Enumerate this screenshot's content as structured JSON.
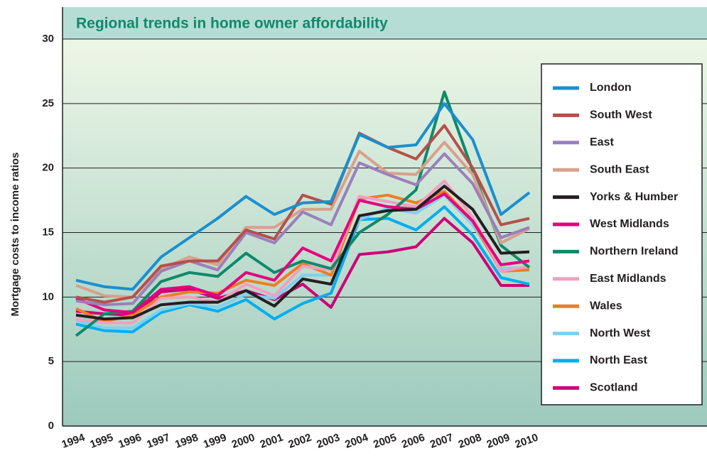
{
  "chart_data": {
    "type": "line",
    "title": "Regional trends in home owner affordability",
    "y_label": "Mortgage costs to income ratios",
    "categories": [
      "1994",
      "1995",
      "1996",
      "1997",
      "1998",
      "1999",
      "2000",
      "2001",
      "2002",
      "2003",
      "2004",
      "2005",
      "2006",
      "2007",
      "2008",
      "2009",
      "2010"
    ],
    "ylim": [
      0,
      30
    ],
    "yticks": [
      0,
      5,
      10,
      15,
      20,
      25,
      30
    ],
    "grid": true,
    "legend": "right",
    "series": [
      {
        "name": "London",
        "color": "#1a8fcf",
        "values": [
          11.3,
          10.8,
          10.6,
          13.1,
          14.6,
          16.1,
          17.8,
          16.4,
          17.3,
          17.4,
          22.6,
          21.6,
          21.8,
          25.0,
          22.2,
          16.4,
          18.1
        ]
      },
      {
        "name": "South West",
        "color": "#b5504a",
        "values": [
          10.0,
          9.6,
          10.0,
          12.4,
          12.8,
          12.8,
          15.2,
          14.5,
          17.9,
          17.2,
          22.7,
          21.6,
          20.7,
          23.3,
          20.0,
          15.6,
          16.1
        ]
      },
      {
        "name": "East",
        "color": "#9b7fbb",
        "values": [
          9.7,
          9.4,
          9.5,
          12.0,
          12.8,
          12.1,
          15.0,
          14.2,
          16.6,
          15.6,
          20.4,
          19.5,
          18.7,
          21.1,
          18.8,
          14.6,
          15.4
        ]
      },
      {
        "name": "South East",
        "color": "#d8a08c",
        "values": [
          10.9,
          10.1,
          10.0,
          12.2,
          13.1,
          12.5,
          15.4,
          15.4,
          16.8,
          16.8,
          21.3,
          19.6,
          19.5,
          22.0,
          19.5,
          14.2,
          15.3
        ]
      },
      {
        "name": "Yorks & Humber",
        "color": "#231f20",
        "values": [
          8.6,
          8.3,
          8.4,
          9.4,
          9.6,
          9.6,
          10.5,
          9.3,
          11.4,
          11.0,
          16.3,
          16.7,
          16.8,
          18.6,
          16.8,
          13.4,
          13.5
        ]
      },
      {
        "name": "West Midlands",
        "color": "#e6007e",
        "values": [
          9.9,
          9.0,
          8.8,
          10.6,
          10.8,
          10.1,
          11.9,
          11.3,
          13.8,
          12.8,
          17.5,
          17.0,
          16.8,
          18.0,
          15.9,
          12.5,
          12.8
        ]
      },
      {
        "name": "Northern Ireland",
        "color": "#0d8a6b",
        "values": [
          7.0,
          8.7,
          8.9,
          11.2,
          11.9,
          11.6,
          13.4,
          11.9,
          12.8,
          12.2,
          15.0,
          16.4,
          18.3,
          25.9,
          19.8,
          14.0,
          12.3
        ]
      },
      {
        "name": "East Midlands",
        "color": "#f0a0c0",
        "values": [
          8.3,
          8.0,
          8.0,
          9.9,
          10.0,
          9.6,
          11.0,
          10.1,
          12.4,
          12.1,
          17.8,
          17.4,
          17.0,
          19.0,
          16.2,
          12.0,
          12.4
        ]
      },
      {
        "name": "Wales",
        "color": "#ef7d22",
        "values": [
          9.1,
          8.1,
          8.6,
          10.0,
          10.4,
          10.3,
          11.3,
          10.9,
          12.6,
          11.7,
          17.6,
          17.9,
          17.3,
          18.2,
          15.9,
          12.0,
          12.1
        ]
      },
      {
        "name": "North West",
        "color": "#7fd0f0",
        "values": [
          8.2,
          7.6,
          7.6,
          9.0,
          9.5,
          9.2,
          10.2,
          9.9,
          11.7,
          11.7,
          16.0,
          16.9,
          16.5,
          17.9,
          15.6,
          12.2,
          12.3
        ]
      },
      {
        "name": "North East",
        "color": "#00aeef",
        "values": [
          7.9,
          7.4,
          7.3,
          8.8,
          9.4,
          8.9,
          9.8,
          8.3,
          9.5,
          10.3,
          16.0,
          16.1,
          15.2,
          17.0,
          14.8,
          11.5,
          11.0
        ]
      },
      {
        "name": "Scotland",
        "color": "#cc0077",
        "values": [
          8.9,
          8.7,
          8.6,
          10.4,
          10.6,
          9.9,
          10.5,
          9.8,
          11.0,
          9.2,
          13.3,
          13.5,
          13.9,
          16.1,
          14.2,
          10.9,
          10.9
        ]
      }
    ]
  }
}
